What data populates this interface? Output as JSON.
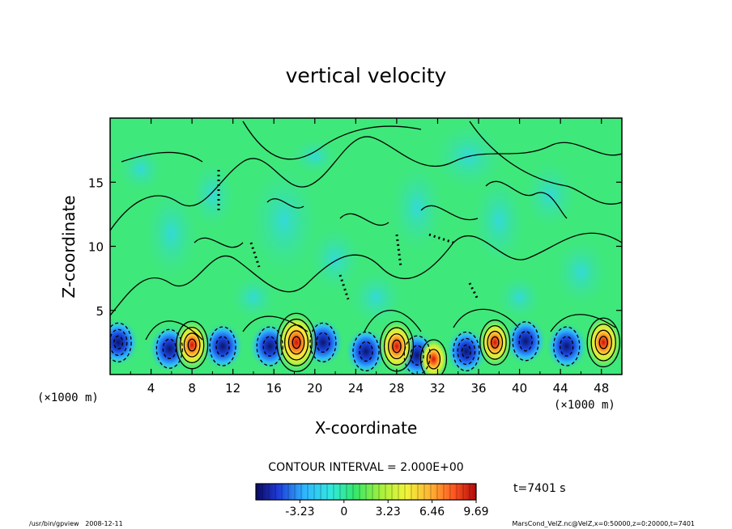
{
  "chart_data": {
    "type": "heatmap",
    "title": "vertical velocity",
    "xlabel": "X-coordinate",
    "ylabel": "Z-coordinate",
    "x_unit_left": "(×1000 m)",
    "x_unit_right": "(×1000 m)",
    "xlim": [
      0,
      50
    ],
    "ylim": [
      0,
      20
    ],
    "x_ticks": [
      4,
      8,
      12,
      16,
      20,
      24,
      28,
      32,
      36,
      40,
      44,
      48
    ],
    "y_ticks": [
      5,
      10,
      15
    ],
    "contour_interval_text": "CONTOUR INTERVAL = 2.000E+00",
    "time_text": "t=7401 s",
    "colorbar": {
      "range": [
        -6.46,
        9.69
      ],
      "tick_labels": [
        "-3.23",
        "0",
        "3.23",
        "6.46",
        "9.69"
      ],
      "tick_values": [
        -3.23,
        0,
        3.23,
        6.46,
        9.69
      ]
    },
    "updraft_cells": [
      {
        "x": 8,
        "z": 2.3,
        "peak": 7.5
      },
      {
        "x": 18.2,
        "z": 2.5,
        "peak": 9.69
      },
      {
        "x": 28,
        "z": 2.2,
        "peak": 8.0
      },
      {
        "x": 31.6,
        "z": 1.2,
        "peak": 4.5
      },
      {
        "x": 37.6,
        "z": 2.5,
        "peak": 7.0
      },
      {
        "x": 48.2,
        "z": 2.5,
        "peak": 7.8
      }
    ],
    "downdraft_cells": [
      {
        "x": 0.8,
        "z": 2.5,
        "peak": -5.5
      },
      {
        "x": 5.8,
        "z": 2.0,
        "peak": -3.5
      },
      {
        "x": 11,
        "z": 2.2,
        "peak": -4.0
      },
      {
        "x": 15.6,
        "z": 2.2,
        "peak": -4.2
      },
      {
        "x": 20.8,
        "z": 2.5,
        "peak": -3.5
      },
      {
        "x": 25,
        "z": 1.8,
        "peak": -3.0
      },
      {
        "x": 30,
        "z": 1.5,
        "peak": -4.0
      },
      {
        "x": 34.8,
        "z": 1.8,
        "peak": -5.5
      },
      {
        "x": 40.6,
        "z": 2.6,
        "peak": -4.0
      },
      {
        "x": 44.6,
        "z": 2.2,
        "peak": -4.5
      }
    ]
  },
  "footer": {
    "left": "/usr/bin/gpview   2008-12-11",
    "right": "MarsCond_VelZ.nc@VelZ,x=0:50000,z=0:20000,t=7401"
  },
  "colors": {
    "background": "#3fe87a",
    "frame": "#000000"
  }
}
